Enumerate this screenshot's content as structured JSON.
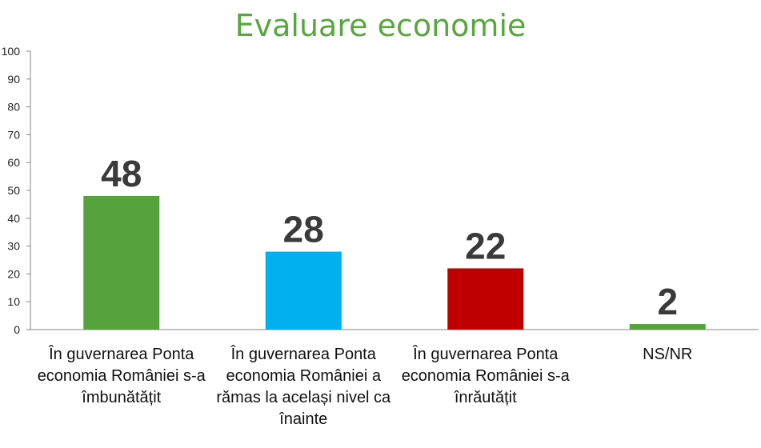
{
  "chart_data": {
    "type": "bar",
    "title": "Evaluare economie",
    "categories": [
      "În guvernarea Ponta economia României s-a îmbunătățit",
      "În guvernarea Ponta economia României a rămas la același nivel ca înainte",
      "În guvernarea Ponta economia României s-a înrăutățit",
      "NS/NR"
    ],
    "values": [
      48,
      28,
      22,
      2
    ],
    "colors": [
      "#56a33e",
      "#00b0ef",
      "#c00000",
      "#56a33e"
    ],
    "ylim": [
      0,
      100
    ],
    "yticks": [
      0,
      10,
      20,
      30,
      40,
      50,
      60,
      70,
      80,
      90,
      100
    ],
    "data_labels": true,
    "grid": false,
    "legend": "none"
  }
}
